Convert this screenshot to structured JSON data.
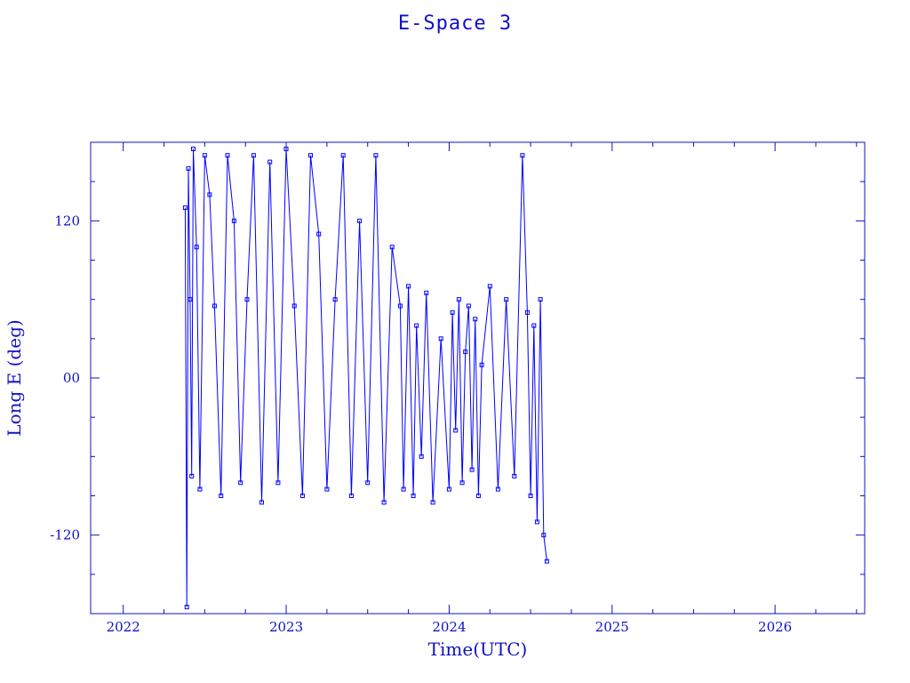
{
  "chart_data": {
    "type": "scatter",
    "title": "E-Space 3",
    "xlabel": "Time(UTC)",
    "ylabel": "Long E (deg)",
    "xlim": [
      2021.8,
      2026.55
    ],
    "ylim": [
      -180,
      180
    ],
    "x_ticks": [
      2022,
      2023,
      2024,
      2025,
      2026
    ],
    "x_tick_labels": [
      "2022",
      "2023",
      "2024",
      "2025",
      "2026"
    ],
    "y_ticks": [
      -120,
      0,
      120
    ],
    "y_tick_labels": [
      "-120",
      "00",
      "120"
    ],
    "color": "#0000ff",
    "data_x_range": [
      2022.38,
      2024.6
    ],
    "series": [
      {
        "marker": "square",
        "line": true,
        "x": [
          2022.38,
          2022.39,
          2022.4,
          2022.41,
          2022.42,
          2022.43,
          2022.45,
          2022.47,
          2022.5,
          2022.53,
          2022.56,
          2022.6,
          2022.64,
          2022.68,
          2022.72,
          2022.76,
          2022.8,
          2022.85,
          2022.9,
          2022.95,
          2023.0,
          2023.05,
          2023.1,
          2023.15,
          2023.2,
          2023.25,
          2023.3,
          2023.35,
          2023.4,
          2023.45,
          2023.5,
          2023.55,
          2023.6,
          2023.65,
          2023.7,
          2023.72,
          2023.75,
          2023.78,
          2023.8,
          2023.83,
          2023.86,
          2023.9,
          2023.95,
          2024.0,
          2024.02,
          2024.04,
          2024.06,
          2024.08,
          2024.1,
          2024.12,
          2024.14,
          2024.16,
          2024.18,
          2024.2,
          2024.25,
          2024.3,
          2024.35,
          2024.4,
          2024.45,
          2024.48,
          2024.5,
          2024.52,
          2024.54,
          2024.56,
          2024.58,
          2024.6
        ],
        "y": [
          130,
          -175,
          160,
          60,
          -75,
          175,
          100,
          -85,
          170,
          140,
          55,
          -90,
          170,
          120,
          -80,
          60,
          170,
          -95,
          165,
          -80,
          175,
          55,
          -90,
          170,
          110,
          -85,
          60,
          170,
          -90,
          120,
          -80,
          170,
          -95,
          100,
          55,
          -85,
          70,
          -90,
          40,
          -60,
          65,
          -95,
          30,
          -85,
          50,
          -40,
          60,
          -80,
          20,
          55,
          -70,
          45,
          -90,
          10,
          70,
          -85,
          60,
          -75,
          170,
          50,
          -90,
          40,
          -110,
          60,
          -120,
          -140
        ]
      }
    ]
  }
}
